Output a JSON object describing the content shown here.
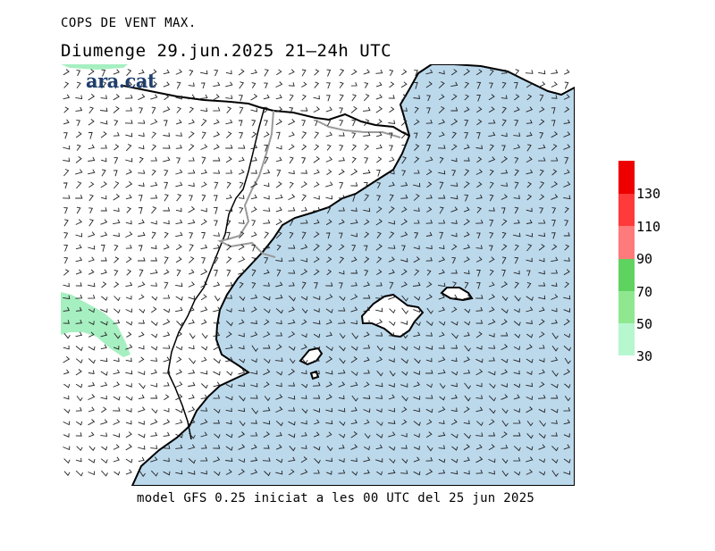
{
  "header": {
    "title": "COPS DE VENT MAX.",
    "subtitle": "Diumenge  29.jun.2025 21–24h UTC"
  },
  "logo_text": "ara.cat",
  "footer": "model GFS 0.25 iniciat a les 00 UTC del 25 jun 2025",
  "legend": {
    "labels": [
      "130",
      "110",
      "90",
      "70",
      "50",
      "30"
    ],
    "colors": [
      "#ee0000",
      "#ff3a3a",
      "#ff7a7a",
      "#5fd35f",
      "#8fe88f",
      "#b6f7cf"
    ]
  },
  "map_colors": {
    "sea": "#bcd9ec",
    "land": "#ffffff",
    "gust_area": "#a6efc1",
    "coast": "#000000",
    "border": "#9a9a9a"
  }
}
